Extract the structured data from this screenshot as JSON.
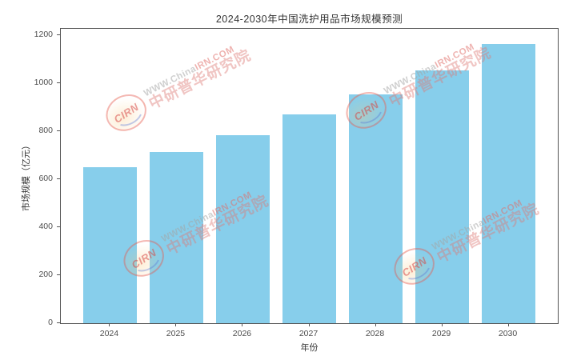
{
  "chart_data": {
    "type": "bar",
    "title": "2024-2030年中国洗护用品市场规模预测",
    "xlabel": "年份",
    "ylabel": "市场规模（亿元）",
    "categories": [
      "2024",
      "2025",
      "2026",
      "2027",
      "2028",
      "2029",
      "2030"
    ],
    "values": [
      650,
      715,
      785,
      870,
      955,
      1055,
      1165
    ],
    "yticks": [
      0,
      200,
      400,
      600,
      800,
      1000,
      1200
    ],
    "ylim": [
      0,
      1228
    ],
    "grid": false,
    "legend_position": "none",
    "bar_color": "#87CEEB",
    "axis_color": "#555555",
    "tick_label_color": "#4d4d4d",
    "title_color": "#333333"
  },
  "watermark": {
    "logo_text": "CIRN",
    "line1_gray": "WWW.China",
    "line1_red": "IRN.COM",
    "line2": "中研普华研究院"
  }
}
